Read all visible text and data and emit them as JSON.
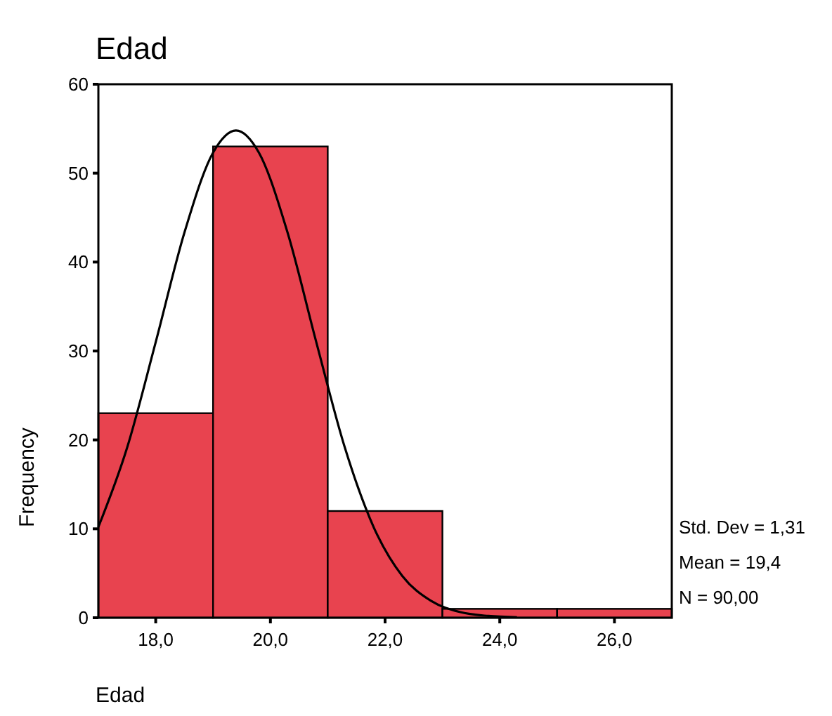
{
  "chart_data": {
    "type": "histogram",
    "title": "Edad",
    "xlabel": "Edad",
    "ylabel": "Frequency",
    "bins": [
      17,
      19,
      21,
      23,
      25,
      27
    ],
    "values": [
      23,
      53,
      12,
      1,
      1
    ],
    "color": "#e8434f",
    "series": [
      {
        "type": "line",
        "color": "#000000",
        "x": [
          17,
          17.5,
          18,
          18.5,
          19,
          19.4,
          19.8,
          20.3,
          20.8,
          21.3,
          21.8,
          22.3,
          22.8,
          23.3,
          23.8,
          24.3
        ],
        "values": [
          10.2,
          19.1,
          31.0,
          43.3,
          52.3,
          54.8,
          52.3,
          43.3,
          31.0,
          19.1,
          10.2,
          4.7,
          1.9,
          0.65,
          0.2,
          0.05
        ]
      }
    ],
    "xlim": [
      17,
      27
    ],
    "xticks": [
      {
        "value": 18,
        "label": "18,0"
      },
      {
        "value": 20,
        "label": "20,0"
      },
      {
        "value": 22,
        "label": "22,0"
      },
      {
        "value": 24,
        "label": "24,0"
      },
      {
        "value": 26,
        "label": "26,0"
      }
    ],
    "ylim": [
      0,
      60
    ],
    "yticks": [
      0,
      10,
      20,
      30,
      40,
      50,
      60
    ],
    "annotations": [
      "Std. Dev = 1,31",
      "Mean = 19,4",
      "N = 90,00"
    ]
  }
}
